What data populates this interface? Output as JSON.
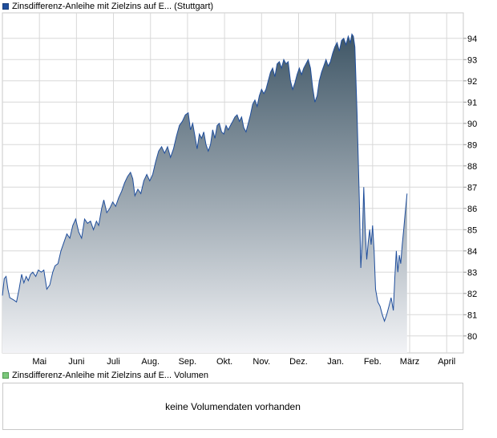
{
  "price_legend": "Zinsdifferenz-Anleihe mit Zielzins auf E... (Stuttgart)",
  "volume_legend": "Zinsdifferenz-Anleihe mit Zielzins auf E... Volumen",
  "volume_message": "keine Volumendaten vorhanden",
  "colors": {
    "line": "#1f4e9c",
    "fill_top": "#3f5666",
    "fill_bottom": "#f2f3f6",
    "grid": "#d8d8d8"
  },
  "chart_data": {
    "type": "area",
    "title": "",
    "xlabel": "",
    "ylabel": "",
    "ylim": [
      79.2,
      95.2
    ],
    "yticks": [
      80,
      81,
      82,
      83,
      84,
      85,
      86,
      87,
      88,
      89,
      90,
      91,
      92,
      93,
      94
    ],
    "grid": true,
    "y_axis_position": "right",
    "month_labels": [
      {
        "label": "Mai",
        "x": 1.0
      },
      {
        "label": "Juni",
        "x": 2.0
      },
      {
        "label": "Juli",
        "x": 3.0
      },
      {
        "label": "Aug.",
        "x": 4.0
      },
      {
        "label": "Sep.",
        "x": 5.0
      },
      {
        "label": "Okt.",
        "x": 6.0
      },
      {
        "label": "Nov.",
        "x": 7.0
      },
      {
        "label": "Dez.",
        "x": 8.0
      },
      {
        "label": "Jan.",
        "x": 9.0
      },
      {
        "label": "Feb.",
        "x": 10.0
      },
      {
        "label": "März",
        "x": 11.0
      },
      {
        "label": "April",
        "x": 12.0
      }
    ],
    "xlim": [
      0.0,
      12.45
    ],
    "series": [
      {
        "values": [
          [
            0.0,
            81.9
          ],
          [
            0.05,
            82.7
          ],
          [
            0.1,
            82.8
          ],
          [
            0.15,
            82.2
          ],
          [
            0.2,
            81.8
          ],
          [
            0.3,
            81.7
          ],
          [
            0.38,
            81.6
          ],
          [
            0.45,
            82.2
          ],
          [
            0.52,
            82.9
          ],
          [
            0.58,
            82.5
          ],
          [
            0.64,
            82.8
          ],
          [
            0.7,
            82.6
          ],
          [
            0.76,
            82.9
          ],
          [
            0.82,
            83.0
          ],
          [
            0.9,
            82.8
          ],
          [
            0.97,
            83.1
          ],
          [
            1.05,
            83.0
          ],
          [
            1.12,
            83.1
          ],
          [
            1.2,
            82.2
          ],
          [
            1.28,
            82.4
          ],
          [
            1.36,
            83.0
          ],
          [
            1.42,
            83.3
          ],
          [
            1.5,
            83.4
          ],
          [
            1.58,
            84.0
          ],
          [
            1.66,
            84.4
          ],
          [
            1.74,
            84.8
          ],
          [
            1.82,
            84.6
          ],
          [
            1.9,
            85.2
          ],
          [
            1.98,
            85.5
          ],
          [
            2.06,
            84.9
          ],
          [
            2.14,
            84.6
          ],
          [
            2.22,
            85.5
          ],
          [
            2.3,
            85.3
          ],
          [
            2.38,
            85.4
          ],
          [
            2.46,
            85.0
          ],
          [
            2.54,
            85.4
          ],
          [
            2.6,
            85.2
          ],
          [
            2.68,
            86.0
          ],
          [
            2.74,
            86.4
          ],
          [
            2.82,
            85.8
          ],
          [
            2.9,
            86.0
          ],
          [
            2.98,
            86.3
          ],
          [
            3.06,
            86.1
          ],
          [
            3.14,
            86.5
          ],
          [
            3.22,
            86.8
          ],
          [
            3.3,
            87.2
          ],
          [
            3.38,
            87.5
          ],
          [
            3.46,
            87.7
          ],
          [
            3.52,
            87.4
          ],
          [
            3.58,
            86.6
          ],
          [
            3.66,
            86.9
          ],
          [
            3.74,
            86.7
          ],
          [
            3.82,
            87.3
          ],
          [
            3.9,
            87.6
          ],
          [
            3.98,
            87.3
          ],
          [
            4.06,
            87.6
          ],
          [
            4.14,
            88.2
          ],
          [
            4.22,
            88.7
          ],
          [
            4.3,
            88.9
          ],
          [
            4.38,
            88.6
          ],
          [
            4.46,
            88.9
          ],
          [
            4.54,
            88.4
          ],
          [
            4.62,
            88.8
          ],
          [
            4.7,
            89.4
          ],
          [
            4.78,
            89.9
          ],
          [
            4.86,
            90.1
          ],
          [
            4.94,
            90.4
          ],
          [
            5.02,
            90.5
          ],
          [
            5.08,
            89.7
          ],
          [
            5.14,
            90.0
          ],
          [
            5.2,
            89.4
          ],
          [
            5.26,
            88.8
          ],
          [
            5.32,
            89.5
          ],
          [
            5.38,
            89.3
          ],
          [
            5.44,
            89.6
          ],
          [
            5.5,
            89.0
          ],
          [
            5.56,
            88.7
          ],
          [
            5.62,
            89.0
          ],
          [
            5.68,
            89.7
          ],
          [
            5.74,
            89.3
          ],
          [
            5.8,
            89.9
          ],
          [
            5.86,
            90.0
          ],
          [
            5.92,
            89.6
          ],
          [
            5.98,
            89.5
          ],
          [
            6.04,
            89.9
          ],
          [
            6.1,
            89.7
          ],
          [
            6.16,
            89.9
          ],
          [
            6.22,
            90.1
          ],
          [
            6.28,
            90.3
          ],
          [
            6.34,
            90.4
          ],
          [
            6.4,
            90.1
          ],
          [
            6.46,
            90.3
          ],
          [
            6.52,
            89.8
          ],
          [
            6.58,
            89.6
          ],
          [
            6.64,
            90.0
          ],
          [
            6.7,
            90.4
          ],
          [
            6.76,
            90.9
          ],
          [
            6.82,
            91.1
          ],
          [
            6.88,
            90.8
          ],
          [
            6.94,
            91.3
          ],
          [
            7.0,
            91.6
          ],
          [
            7.06,
            91.4
          ],
          [
            7.12,
            91.6
          ],
          [
            7.18,
            92.0
          ],
          [
            7.24,
            92.4
          ],
          [
            7.3,
            92.6
          ],
          [
            7.36,
            92.2
          ],
          [
            7.42,
            92.8
          ],
          [
            7.48,
            92.9
          ],
          [
            7.54,
            92.6
          ],
          [
            7.6,
            93.0
          ],
          [
            7.66,
            92.8
          ],
          [
            7.72,
            92.9
          ],
          [
            7.78,
            92.0
          ],
          [
            7.84,
            91.6
          ],
          [
            7.9,
            91.9
          ],
          [
            7.96,
            92.3
          ],
          [
            8.02,
            92.6
          ],
          [
            8.08,
            92.3
          ],
          [
            8.14,
            92.6
          ],
          [
            8.2,
            92.8
          ],
          [
            8.26,
            93.0
          ],
          [
            8.32,
            92.6
          ],
          [
            8.38,
            91.7
          ],
          [
            8.44,
            91.0
          ],
          [
            8.5,
            91.3
          ],
          [
            8.56,
            92.0
          ],
          [
            8.62,
            92.4
          ],
          [
            8.68,
            92.7
          ],
          [
            8.74,
            93.0
          ],
          [
            8.8,
            92.7
          ],
          [
            8.86,
            92.9
          ],
          [
            8.92,
            93.3
          ],
          [
            8.98,
            93.6
          ],
          [
            9.04,
            93.8
          ],
          [
            9.1,
            93.4
          ],
          [
            9.16,
            93.9
          ],
          [
            9.22,
            94.0
          ],
          [
            9.28,
            93.7
          ],
          [
            9.34,
            94.1
          ],
          [
            9.4,
            93.8
          ],
          [
            9.44,
            94.2
          ],
          [
            9.48,
            94.1
          ],
          [
            9.52,
            93.6
          ],
          [
            9.58,
            90.5
          ],
          [
            9.64,
            86.5
          ],
          [
            9.68,
            83.2
          ],
          [
            9.72,
            84.5
          ],
          [
            9.76,
            87.0
          ],
          [
            9.8,
            85.0
          ],
          [
            9.84,
            83.6
          ],
          [
            9.88,
            84.4
          ],
          [
            9.92,
            85.0
          ],
          [
            9.96,
            84.3
          ],
          [
            10.0,
            85.2
          ],
          [
            10.04,
            84.0
          ],
          [
            10.08,
            82.2
          ],
          [
            10.14,
            81.6
          ],
          [
            10.2,
            81.4
          ],
          [
            10.26,
            81.0
          ],
          [
            10.32,
            80.7
          ],
          [
            10.38,
            81.0
          ],
          [
            10.44,
            81.4
          ],
          [
            10.5,
            81.8
          ],
          [
            10.56,
            81.2
          ],
          [
            10.6,
            82.8
          ],
          [
            10.64,
            84.0
          ],
          [
            10.68,
            83.0
          ],
          [
            10.72,
            83.8
          ],
          [
            10.76,
            83.4
          ],
          [
            10.8,
            84.3
          ],
          [
            10.84,
            85.0
          ],
          [
            10.88,
            85.8
          ],
          [
            10.93,
            86.7
          ]
        ]
      }
    ]
  }
}
